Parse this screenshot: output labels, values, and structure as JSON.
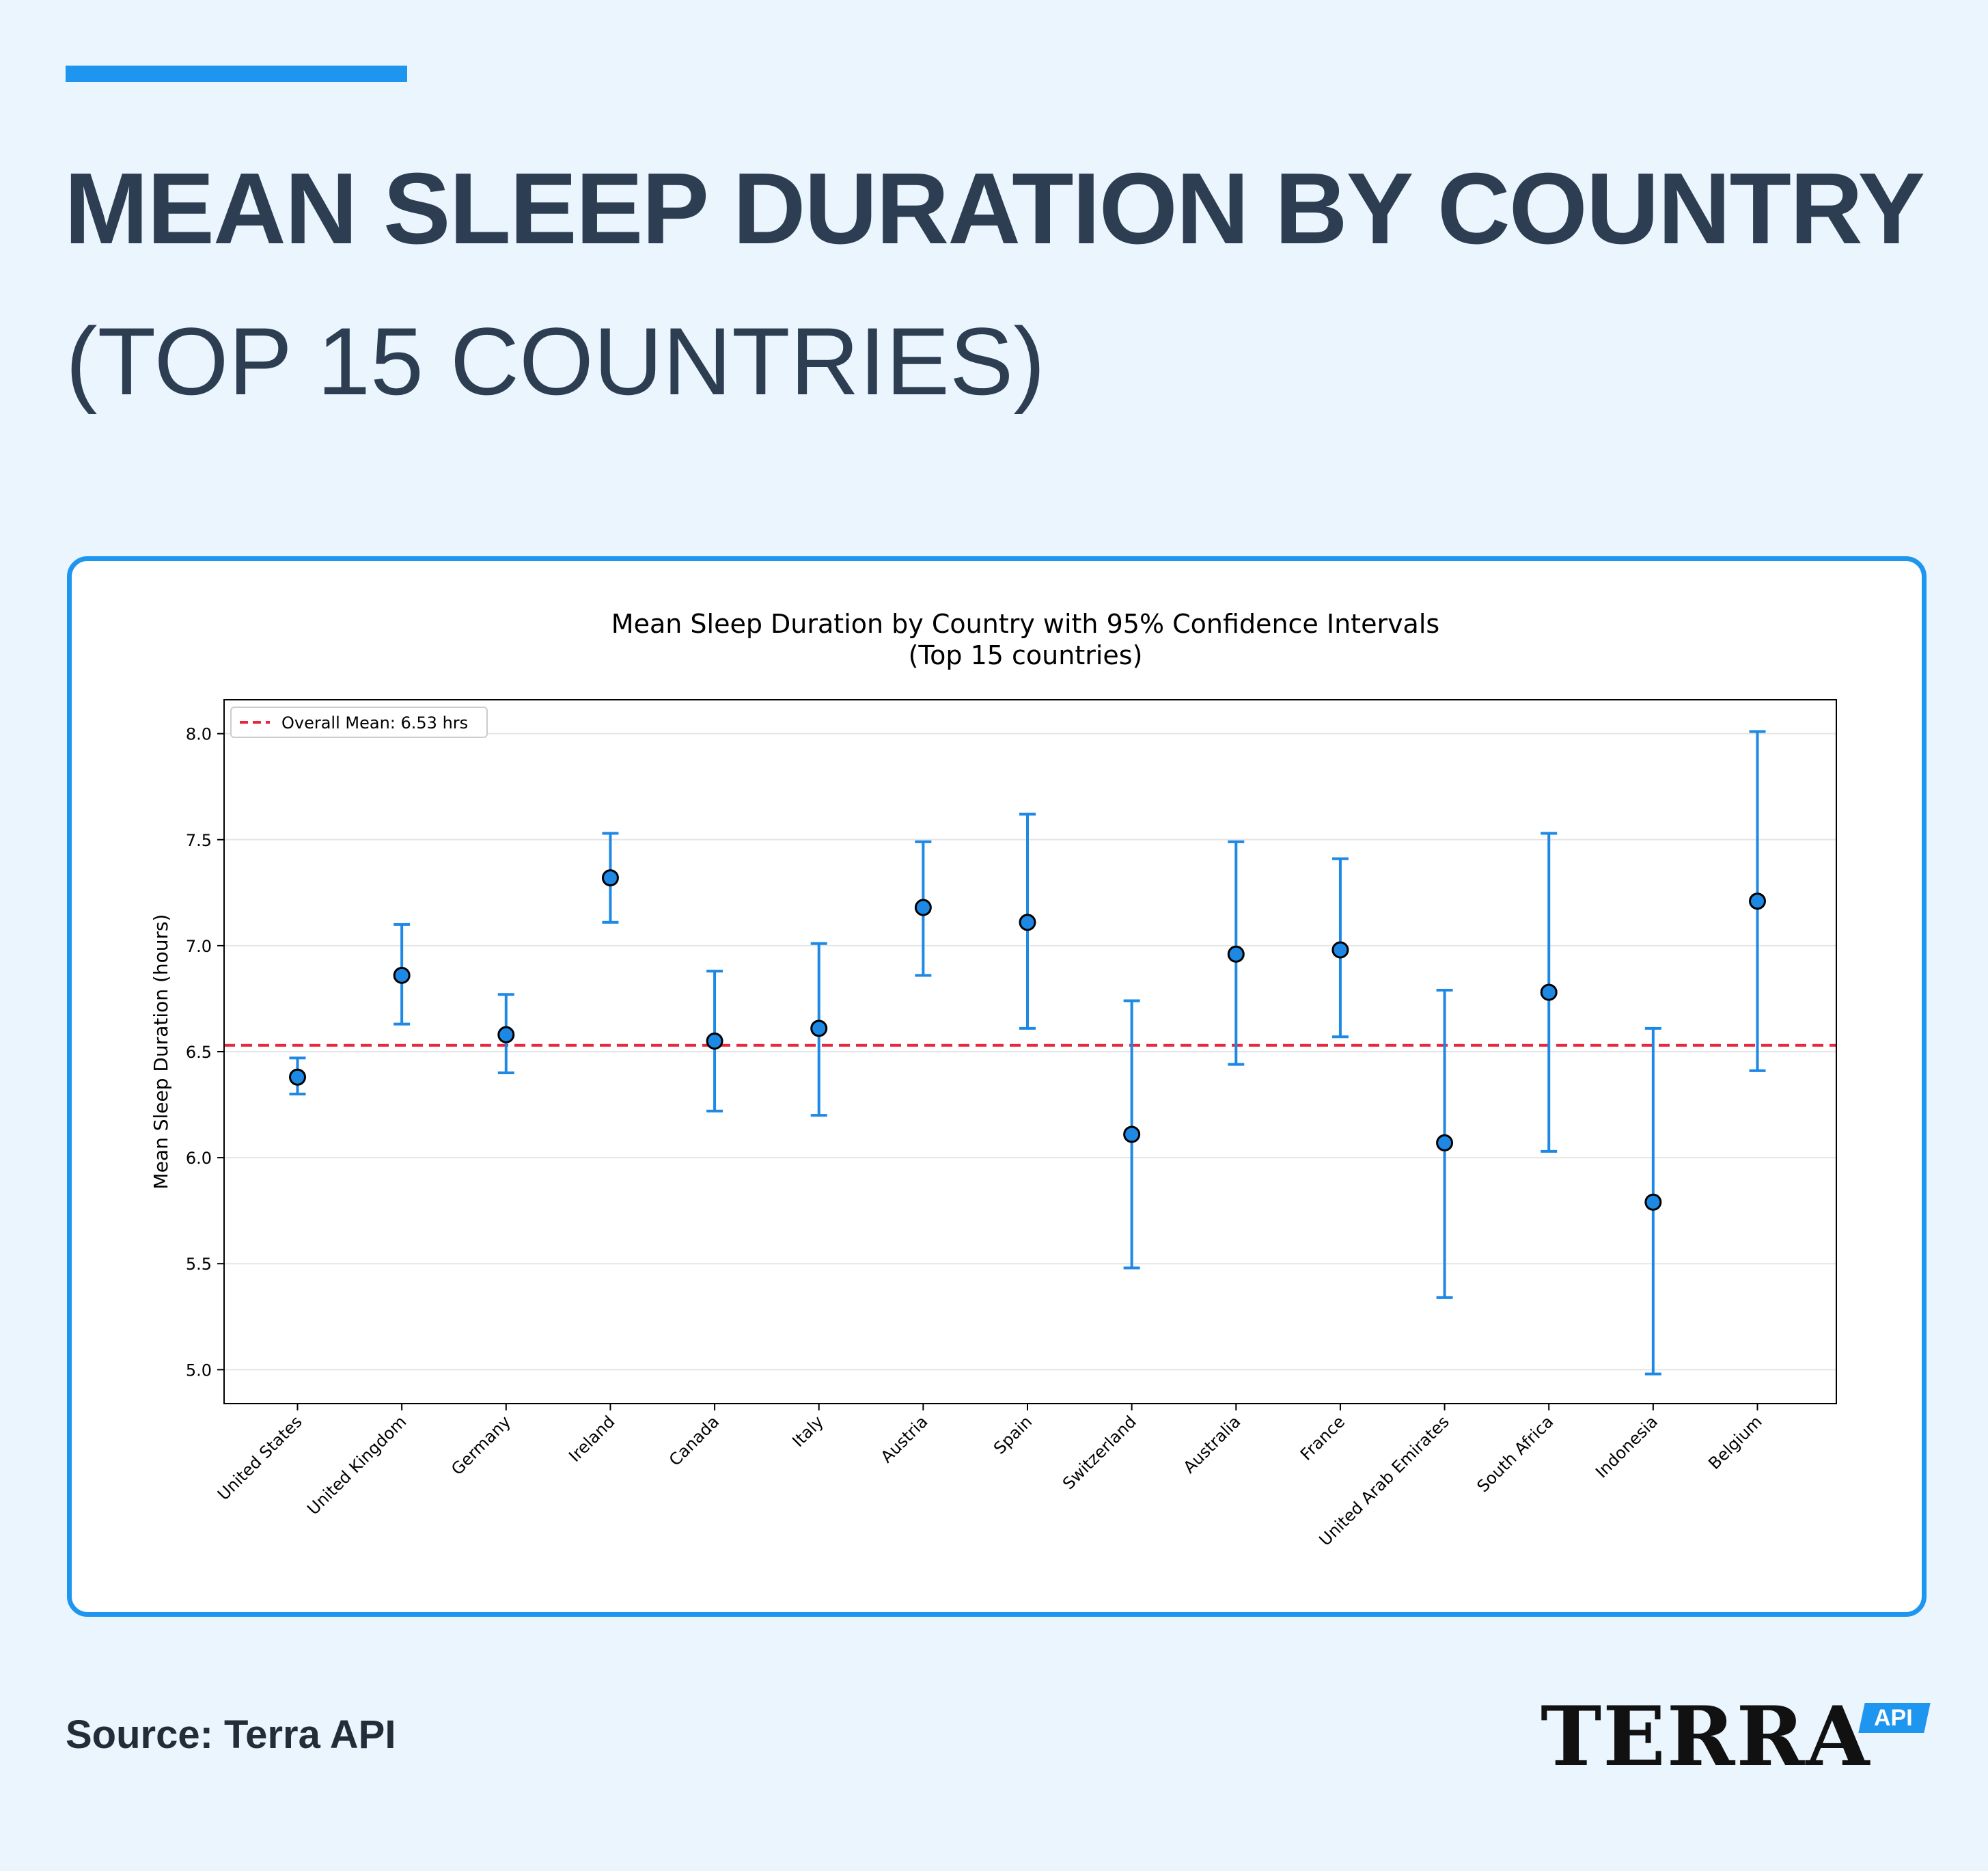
{
  "header": {
    "title_main": "MEAN SLEEP DURATION BY COUNTRY",
    "title_sub": "(TOP 15 COUNTRIES)"
  },
  "footer": {
    "source": "Source: Terra API",
    "logo_word": "TERRA",
    "logo_badge": "API"
  },
  "colors": {
    "accent": "#1e96f0",
    "title": "#2e3e52",
    "mean_line": "#e8283c",
    "marker_fill": "#1e88e5",
    "errorbar": "#1e88e5"
  },
  "chart_data": {
    "type": "scatter",
    "title": "Mean Sleep Duration by Country with 95% Confidence Intervals",
    "subtitle": "(Top 15 countries)",
    "xlabel": "",
    "ylabel": "Mean Sleep Duration (hours)",
    "ylim": [
      4.84,
      8.16
    ],
    "yticks": [
      "5.0",
      "5.5",
      "6.0",
      "6.5",
      "7.0",
      "7.5",
      "8.0"
    ],
    "ytick_values": [
      5.0,
      5.5,
      6.0,
      6.5,
      7.0,
      7.5,
      8.0
    ],
    "grid": "horizontal",
    "legend": {
      "placement": "top-left",
      "label": "Overall Mean: 6.53 hrs"
    },
    "overall_mean": 6.53,
    "categories": [
      "United States",
      "United Kingdom",
      "Germany",
      "Ireland",
      "Canada",
      "Italy",
      "Austria",
      "Spain",
      "Switzerland",
      "Australia",
      "France",
      "United Arab Emirates",
      "South Africa",
      "Indonesia",
      "Belgium"
    ],
    "values": [
      6.38,
      6.86,
      6.58,
      7.32,
      6.55,
      6.61,
      7.18,
      7.11,
      6.11,
      6.96,
      6.98,
      6.07,
      6.78,
      5.79,
      7.21
    ],
    "ci_lower": [
      6.3,
      6.63,
      6.4,
      7.11,
      6.22,
      6.2,
      6.86,
      6.61,
      5.48,
      6.44,
      6.57,
      5.34,
      6.03,
      4.98,
      6.41
    ],
    "ci_upper": [
      6.47,
      7.1,
      6.77,
      7.53,
      6.88,
      7.01,
      7.49,
      7.62,
      6.74,
      7.49,
      7.41,
      6.79,
      7.53,
      6.61,
      8.01
    ]
  }
}
